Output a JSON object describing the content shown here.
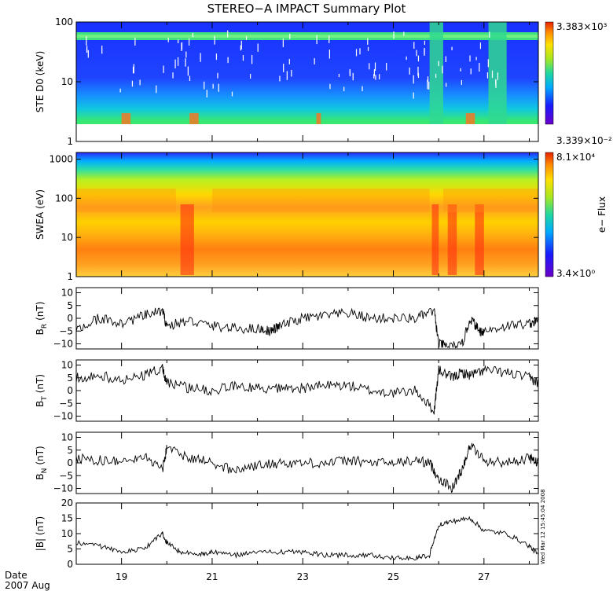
{
  "title": "STEREO−A IMPACT Summary Plot",
  "footer": {
    "date_label": "Date",
    "period_label": "2007 Aug"
  },
  "timestamp": "Wed Mar 12 15:45:04 2008",
  "chart_data": [
    {
      "type": "heatmap",
      "panel": "ste",
      "ylabel": "STE D0 (keV)",
      "yscale": "log",
      "ylim": [
        1,
        100
      ],
      "y_ticks": [
        "1",
        "10",
        "100"
      ],
      "colorbar": {
        "max_label": "3.383×10³",
        "min_label": "3.339×10⁻²",
        "min": 0.03339,
        "max": 3383
      },
      "x_ticks": [
        "19",
        "21",
        "23",
        "25",
        "27"
      ],
      "xlim": [
        18.0,
        28.2
      ],
      "description_bands_keV": [
        2,
        100
      ],
      "features": [
        {
          "x": [
            25.8,
            26.1
          ],
          "level": "high"
        },
        {
          "x": [
            27.1,
            27.5
          ],
          "level": "high"
        }
      ]
    },
    {
      "type": "heatmap",
      "panel": "swea",
      "ylabel": "SWEA (eV)",
      "yscale": "log",
      "ylim": [
        1,
        1500
      ],
      "y_ticks": [
        "1",
        "10",
        "100",
        "1000"
      ],
      "colorbar": {
        "max_label": "8.1×10⁴",
        "min_label": "3.4×10⁰",
        "min": 3.4,
        "max": 81000,
        "title": "e− Flux"
      },
      "x_ticks": [
        "19",
        "21",
        "23",
        "25",
        "27"
      ],
      "xlim": [
        18.0,
        28.2
      ]
    },
    {
      "type": "line",
      "panel": "br",
      "ylabel_main": "B",
      "ylabel_sub": "R",
      "ylabel_unit": "(nT)",
      "ylim": [
        -12,
        12
      ],
      "y_ticks": [
        "−10",
        "−5",
        "0",
        "5",
        "10"
      ],
      "xlim": [
        18.0,
        28.2
      ],
      "x": [
        18.0,
        18.5,
        19.0,
        19.5,
        19.9,
        20.0,
        20.5,
        21.0,
        21.5,
        22.0,
        22.3,
        22.5,
        23.0,
        23.5,
        24.0,
        24.5,
        25.0,
        25.5,
        25.9,
        26.0,
        26.2,
        26.5,
        26.7,
        26.9,
        27.0,
        27.5,
        28.0,
        28.2
      ],
      "y": [
        -5,
        0,
        -2,
        1,
        3,
        -3,
        -1,
        -3,
        -4,
        -4,
        -5,
        -3,
        0,
        1,
        2,
        0,
        0,
        0,
        3,
        -10,
        -11,
        -11,
        0,
        -5,
        -5,
        -3,
        -2,
        -1
      ]
    },
    {
      "type": "line",
      "panel": "bt",
      "ylabel_main": "B",
      "ylabel_sub": "T",
      "ylabel_unit": "(nT)",
      "ylim": [
        -12,
        12
      ],
      "y_ticks": [
        "−10",
        "−5",
        "0",
        "5",
        "10"
      ],
      "xlim": [
        18.0,
        28.2
      ],
      "x": [
        18.0,
        18.5,
        19.0,
        19.5,
        19.9,
        20.0,
        20.5,
        21.0,
        21.5,
        22.0,
        22.5,
        23.0,
        23.5,
        24.0,
        24.5,
        25.0,
        25.5,
        25.9,
        26.0,
        26.3,
        26.5,
        26.7,
        27.0,
        27.5,
        28.0,
        28.2
      ],
      "y": [
        5,
        6,
        4,
        6,
        9,
        3,
        1,
        0,
        2,
        1,
        1,
        1,
        2,
        2,
        0,
        -1,
        0,
        -8,
        8,
        5,
        7,
        6,
        8,
        7,
        5,
        3
      ]
    },
    {
      "type": "line",
      "panel": "bn",
      "ylabel_main": "B",
      "ylabel_sub": "N",
      "ylabel_unit": "(nT)",
      "ylim": [
        -12,
        12
      ],
      "y_ticks": [
        "−10",
        "−5",
        "0",
        "5",
        "10"
      ],
      "xlim": [
        18.0,
        28.2
      ],
      "x": [
        18.0,
        18.5,
        19.0,
        19.5,
        19.9,
        20.0,
        20.5,
        21.0,
        21.5,
        22.0,
        22.5,
        23.0,
        23.5,
        24.0,
        24.5,
        25.0,
        25.5,
        25.8,
        26.0,
        26.3,
        26.5,
        26.7,
        27.0,
        27.5,
        28.0,
        28.2
      ],
      "y": [
        2,
        1,
        1,
        3,
        -3,
        6,
        2,
        0,
        -3,
        -1,
        0,
        0,
        0,
        1,
        0,
        0,
        1,
        0,
        -6,
        -10,
        -3,
        7,
        1,
        0,
        2,
        0
      ]
    },
    {
      "type": "line",
      "panel": "bmag",
      "ylabel": "|B| (nT)",
      "ylim": [
        0,
        20
      ],
      "y_ticks": [
        "0",
        "5",
        "10",
        "15",
        "20"
      ],
      "xlim": [
        18.0,
        28.2
      ],
      "x": [
        18.0,
        18.5,
        19.0,
        19.5,
        19.9,
        20.0,
        20.3,
        20.7,
        21.0,
        21.5,
        22.0,
        22.5,
        23.0,
        23.5,
        24.0,
        24.5,
        25.0,
        25.5,
        25.8,
        26.0,
        26.3,
        26.7,
        27.0,
        27.5,
        28.0,
        28.2
      ],
      "y": [
        7,
        6,
        4,
        5,
        10,
        7,
        4,
        3,
        4,
        3,
        4,
        4,
        4,
        3,
        3,
        3,
        2,
        2,
        3,
        13,
        14,
        15,
        11,
        10,
        6,
        3
      ]
    }
  ]
}
